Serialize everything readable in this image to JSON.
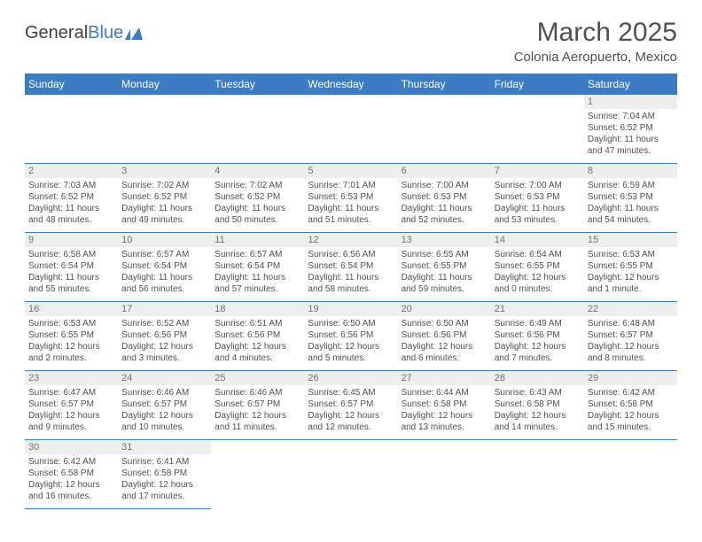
{
  "logo": {
    "part1": "General",
    "part2": "Blue"
  },
  "title": "March 2025",
  "location": "Colonia Aeropuerto, Mexico",
  "dayHeaders": [
    "Sunday",
    "Monday",
    "Tuesday",
    "Wednesday",
    "Thursday",
    "Friday",
    "Saturday"
  ],
  "colors": {
    "headerBg": "#3b7cc4",
    "headerText": "#ffffff",
    "dayNumBg": "#eeeeee",
    "dayNumText": "#707070",
    "cellBorder": "#3b7cc4",
    "bodyText": "#505050",
    "pageBg": "#ffffff"
  },
  "weeks": [
    [
      {
        "n": "",
        "sr": "",
        "ss": "",
        "dl": ""
      },
      {
        "n": "",
        "sr": "",
        "ss": "",
        "dl": ""
      },
      {
        "n": "",
        "sr": "",
        "ss": "",
        "dl": ""
      },
      {
        "n": "",
        "sr": "",
        "ss": "",
        "dl": ""
      },
      {
        "n": "",
        "sr": "",
        "ss": "",
        "dl": ""
      },
      {
        "n": "",
        "sr": "",
        "ss": "",
        "dl": ""
      },
      {
        "n": "1",
        "sr": "Sunrise: 7:04 AM",
        "ss": "Sunset: 6:52 PM",
        "dl": "Daylight: 11 hours and 47 minutes."
      }
    ],
    [
      {
        "n": "2",
        "sr": "Sunrise: 7:03 AM",
        "ss": "Sunset: 6:52 PM",
        "dl": "Daylight: 11 hours and 48 minutes."
      },
      {
        "n": "3",
        "sr": "Sunrise: 7:02 AM",
        "ss": "Sunset: 6:52 PM",
        "dl": "Daylight: 11 hours and 49 minutes."
      },
      {
        "n": "4",
        "sr": "Sunrise: 7:02 AM",
        "ss": "Sunset: 6:52 PM",
        "dl": "Daylight: 11 hours and 50 minutes."
      },
      {
        "n": "5",
        "sr": "Sunrise: 7:01 AM",
        "ss": "Sunset: 6:53 PM",
        "dl": "Daylight: 11 hours and 51 minutes."
      },
      {
        "n": "6",
        "sr": "Sunrise: 7:00 AM",
        "ss": "Sunset: 6:53 PM",
        "dl": "Daylight: 11 hours and 52 minutes."
      },
      {
        "n": "7",
        "sr": "Sunrise: 7:00 AM",
        "ss": "Sunset: 6:53 PM",
        "dl": "Daylight: 11 hours and 53 minutes."
      },
      {
        "n": "8",
        "sr": "Sunrise: 6:59 AM",
        "ss": "Sunset: 6:53 PM",
        "dl": "Daylight: 11 hours and 54 minutes."
      }
    ],
    [
      {
        "n": "9",
        "sr": "Sunrise: 6:58 AM",
        "ss": "Sunset: 6:54 PM",
        "dl": "Daylight: 11 hours and 55 minutes."
      },
      {
        "n": "10",
        "sr": "Sunrise: 6:57 AM",
        "ss": "Sunset: 6:54 PM",
        "dl": "Daylight: 11 hours and 56 minutes."
      },
      {
        "n": "11",
        "sr": "Sunrise: 6:57 AM",
        "ss": "Sunset: 6:54 PM",
        "dl": "Daylight: 11 hours and 57 minutes."
      },
      {
        "n": "12",
        "sr": "Sunrise: 6:56 AM",
        "ss": "Sunset: 6:54 PM",
        "dl": "Daylight: 11 hours and 58 minutes."
      },
      {
        "n": "13",
        "sr": "Sunrise: 6:55 AM",
        "ss": "Sunset: 6:55 PM",
        "dl": "Daylight: 11 hours and 59 minutes."
      },
      {
        "n": "14",
        "sr": "Sunrise: 6:54 AM",
        "ss": "Sunset: 6:55 PM",
        "dl": "Daylight: 12 hours and 0 minutes."
      },
      {
        "n": "15",
        "sr": "Sunrise: 6:53 AM",
        "ss": "Sunset: 6:55 PM",
        "dl": "Daylight: 12 hours and 1 minute."
      }
    ],
    [
      {
        "n": "16",
        "sr": "Sunrise: 6:53 AM",
        "ss": "Sunset: 6:55 PM",
        "dl": "Daylight: 12 hours and 2 minutes."
      },
      {
        "n": "17",
        "sr": "Sunrise: 6:52 AM",
        "ss": "Sunset: 6:56 PM",
        "dl": "Daylight: 12 hours and 3 minutes."
      },
      {
        "n": "18",
        "sr": "Sunrise: 6:51 AM",
        "ss": "Sunset: 6:56 PM",
        "dl": "Daylight: 12 hours and 4 minutes."
      },
      {
        "n": "19",
        "sr": "Sunrise: 6:50 AM",
        "ss": "Sunset: 6:56 PM",
        "dl": "Daylight: 12 hours and 5 minutes."
      },
      {
        "n": "20",
        "sr": "Sunrise: 6:50 AM",
        "ss": "Sunset: 6:56 PM",
        "dl": "Daylight: 12 hours and 6 minutes."
      },
      {
        "n": "21",
        "sr": "Sunrise: 6:49 AM",
        "ss": "Sunset: 6:56 PM",
        "dl": "Daylight: 12 hours and 7 minutes."
      },
      {
        "n": "22",
        "sr": "Sunrise: 6:48 AM",
        "ss": "Sunset: 6:57 PM",
        "dl": "Daylight: 12 hours and 8 minutes."
      }
    ],
    [
      {
        "n": "23",
        "sr": "Sunrise: 6:47 AM",
        "ss": "Sunset: 6:57 PM",
        "dl": "Daylight: 12 hours and 9 minutes."
      },
      {
        "n": "24",
        "sr": "Sunrise: 6:46 AM",
        "ss": "Sunset: 6:57 PM",
        "dl": "Daylight: 12 hours and 10 minutes."
      },
      {
        "n": "25",
        "sr": "Sunrise: 6:46 AM",
        "ss": "Sunset: 6:57 PM",
        "dl": "Daylight: 12 hours and 11 minutes."
      },
      {
        "n": "26",
        "sr": "Sunrise: 6:45 AM",
        "ss": "Sunset: 6:57 PM",
        "dl": "Daylight: 12 hours and 12 minutes."
      },
      {
        "n": "27",
        "sr": "Sunrise: 6:44 AM",
        "ss": "Sunset: 6:58 PM",
        "dl": "Daylight: 12 hours and 13 minutes."
      },
      {
        "n": "28",
        "sr": "Sunrise: 6:43 AM",
        "ss": "Sunset: 6:58 PM",
        "dl": "Daylight: 12 hours and 14 minutes."
      },
      {
        "n": "29",
        "sr": "Sunrise: 6:42 AM",
        "ss": "Sunset: 6:58 PM",
        "dl": "Daylight: 12 hours and 15 minutes."
      }
    ],
    [
      {
        "n": "30",
        "sr": "Sunrise: 6:42 AM",
        "ss": "Sunset: 6:58 PM",
        "dl": "Daylight: 12 hours and 16 minutes."
      },
      {
        "n": "31",
        "sr": "Sunrise: 6:41 AM",
        "ss": "Sunset: 6:58 PM",
        "dl": "Daylight: 12 hours and 17 minutes."
      },
      {
        "n": "",
        "sr": "",
        "ss": "",
        "dl": ""
      },
      {
        "n": "",
        "sr": "",
        "ss": "",
        "dl": ""
      },
      {
        "n": "",
        "sr": "",
        "ss": "",
        "dl": ""
      },
      {
        "n": "",
        "sr": "",
        "ss": "",
        "dl": ""
      },
      {
        "n": "",
        "sr": "",
        "ss": "",
        "dl": ""
      }
    ]
  ]
}
